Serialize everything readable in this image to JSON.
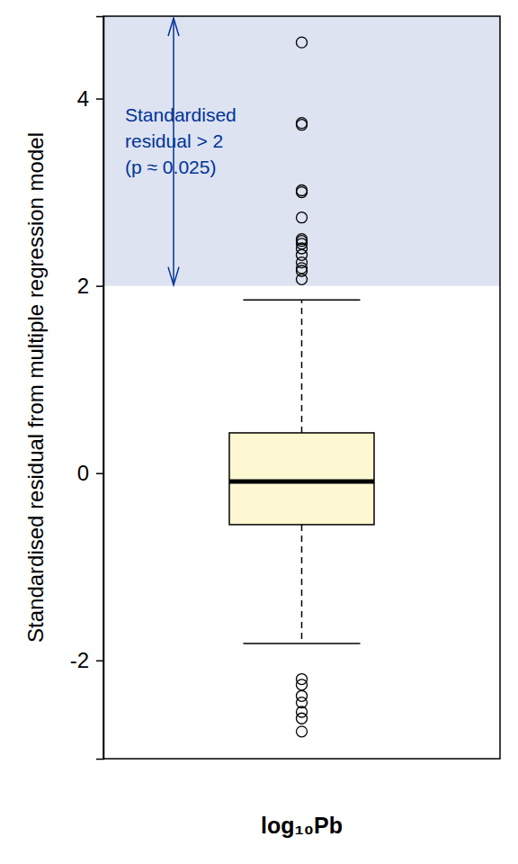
{
  "chart_data": {
    "type": "box",
    "y_label": "Standardised residual from multiple regression model",
    "categories": [
      "log₁₀Pb"
    ],
    "color": "#fdf8d2",
    "ylim": [
      -3.05,
      4.88
    ],
    "yticks": [
      -2,
      0,
      2,
      4
    ],
    "boxes": [
      {
        "whisker_low": -1.82,
        "q1": -0.55,
        "median": -0.09,
        "q3": 0.43,
        "whisker_high": 1.85,
        "outliers": [
          4.6,
          3.74,
          3.72,
          3.02,
          3.0,
          2.73,
          2.5,
          2.48,
          2.45,
          2.4,
          2.33,
          2.25,
          2.19,
          2.16,
          2.07,
          -2.2,
          -2.26,
          -2.38,
          -2.45,
          -2.55,
          -2.62,
          -2.76
        ]
      }
    ],
    "annotations": [
      {
        "lines": [
          "Standardised",
          "residual > 2",
          "(p ≈ 0.025)"
        ],
        "y": 2,
        "color": "#003399"
      }
    ]
  }
}
